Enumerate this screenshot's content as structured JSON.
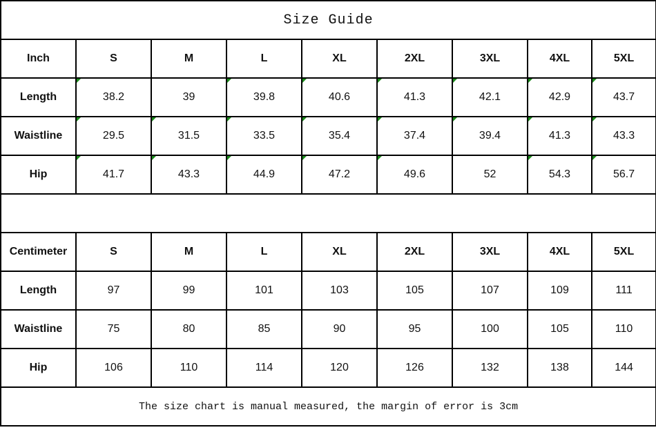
{
  "title": "Size Guide",
  "sizes": [
    "S",
    "M",
    "L",
    "XL",
    "2XL",
    "3XL",
    "4XL",
    "5XL"
  ],
  "inch": {
    "label": "Inch",
    "rows": [
      {
        "name": "Length",
        "values": [
          "38.2",
          "39",
          "39.8",
          "40.6",
          "41.3",
          "42.1",
          "42.9",
          "43.7"
        ]
      },
      {
        "name": "Waistline",
        "values": [
          "29.5",
          "31.5",
          "33.5",
          "35.4",
          "37.4",
          "39.4",
          "41.3",
          "43.3"
        ]
      },
      {
        "name": "Hip",
        "values": [
          "41.7",
          "43.3",
          "44.9",
          "47.2",
          "49.6",
          "52",
          "54.3",
          "56.7"
        ]
      }
    ]
  },
  "centimeter": {
    "label": "Centimeter",
    "rows": [
      {
        "name": "Length",
        "values": [
          "97",
          "99",
          "101",
          "103",
          "105",
          "107",
          "109",
          "111"
        ]
      },
      {
        "name": "Waistline",
        "values": [
          "75",
          "80",
          "85",
          "90",
          "95",
          "100",
          "105",
          "110"
        ]
      },
      {
        "name": "Hip",
        "values": [
          "106",
          "110",
          "114",
          "120",
          "126",
          "132",
          "138",
          "144"
        ]
      }
    ]
  },
  "footer": "The size chart is manual measured, the margin of error is 3cm",
  "colors": {
    "border": "#000000",
    "cell_marker": "#1a8a1a"
  }
}
